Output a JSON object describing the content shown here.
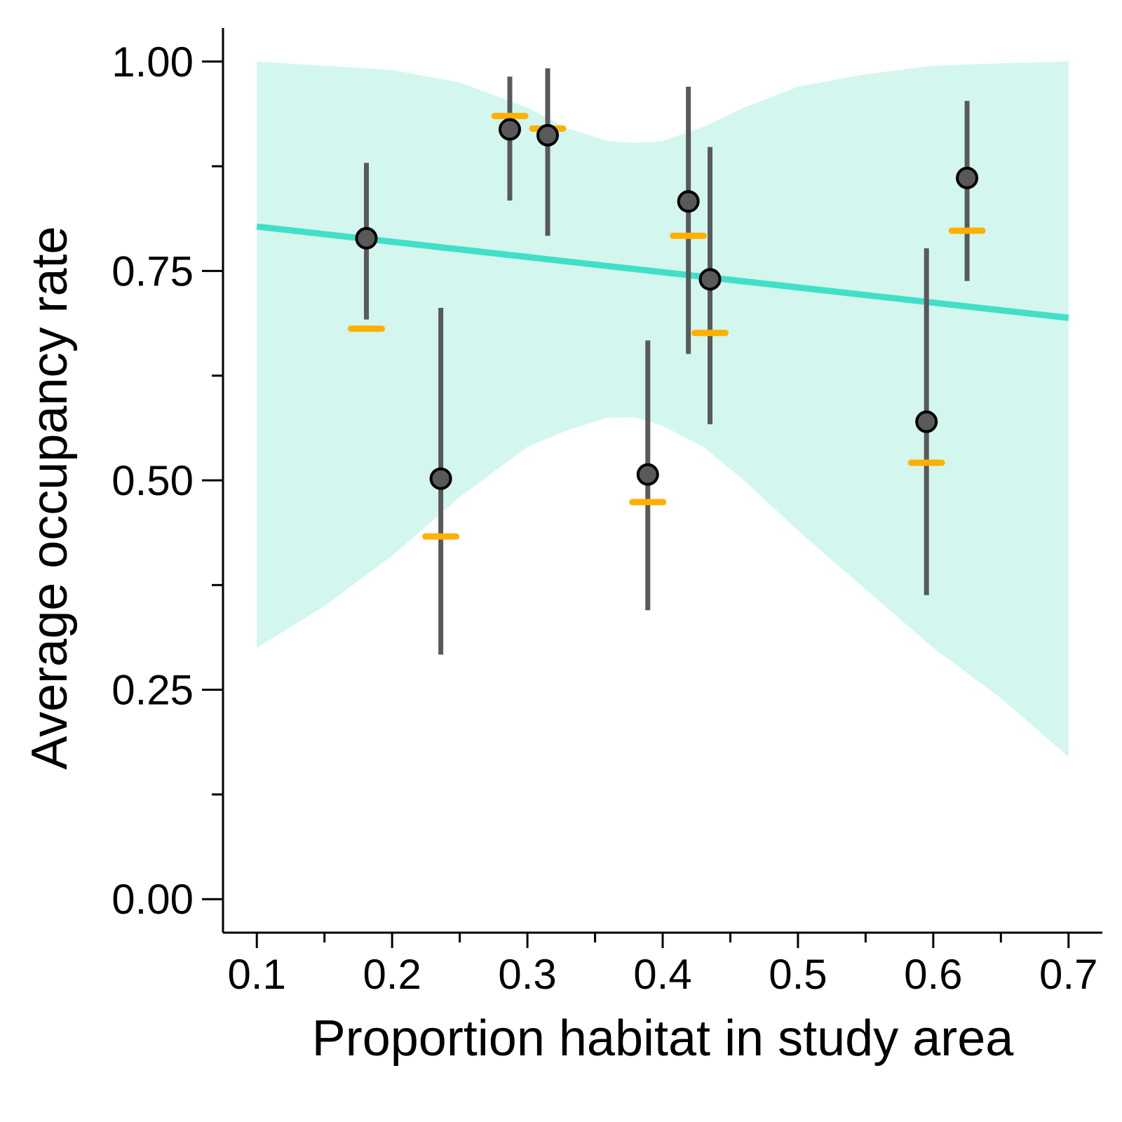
{
  "chart_data": {
    "type": "scatter",
    "xlabel": "Proportion habitat in study area",
    "ylabel": "Average occupancy rate",
    "xlim": [
      0.075,
      0.725
    ],
    "ylim": [
      -0.04,
      1.04
    ],
    "x_ticks": [
      0.1,
      0.2,
      0.3,
      0.4,
      0.5,
      0.6,
      0.7
    ],
    "x_tick_labels": [
      "0.1",
      "0.2",
      "0.3",
      "0.4",
      "0.5",
      "0.6",
      "0.7"
    ],
    "x_minor_ticks": [
      0.15,
      0.25,
      0.35,
      0.45,
      0.55,
      0.65
    ],
    "y_ticks": [
      0.0,
      0.25,
      0.5,
      0.75,
      1.0
    ],
    "y_tick_labels": [
      "0.00",
      "0.25",
      "0.50",
      "0.75",
      "1.00"
    ],
    "y_minor_ticks": [
      0.125,
      0.375,
      0.625,
      0.875
    ],
    "grid": false,
    "colors": {
      "trend": "#40E0C8",
      "ribbon": "#D3F7EF",
      "point": "#595959",
      "errorbar": "#595959",
      "observed": "#FFB000"
    },
    "trend_line": {
      "x": [
        0.1,
        0.7
      ],
      "y": [
        0.803,
        0.694
      ]
    },
    "confidence_band": {
      "x": [
        0.1,
        0.15,
        0.2,
        0.25,
        0.3,
        0.33,
        0.36,
        0.38,
        0.4,
        0.43,
        0.46,
        0.5,
        0.55,
        0.6,
        0.65,
        0.7
      ],
      "lower": [
        0.3,
        0.35,
        0.41,
        0.48,
        0.54,
        0.56,
        0.575,
        0.575,
        0.565,
        0.54,
        0.5,
        0.44,
        0.37,
        0.3,
        0.24,
        0.17
      ],
      "upper": [
        1.0,
        0.995,
        0.99,
        0.975,
        0.945,
        0.92,
        0.905,
        0.903,
        0.905,
        0.922,
        0.945,
        0.97,
        0.985,
        0.995,
        0.998,
        1.0
      ]
    },
    "points": [
      {
        "x": 0.181,
        "y": 0.789,
        "lower": 0.692,
        "upper": 0.879,
        "observed": 0.681
      },
      {
        "x": 0.236,
        "y": 0.502,
        "lower": 0.292,
        "upper": 0.706,
        "observed": 0.433
      },
      {
        "x": 0.287,
        "y": 0.919,
        "lower": 0.834,
        "upper": 0.982,
        "observed": 0.935
      },
      {
        "x": 0.315,
        "y": 0.912,
        "lower": 0.792,
        "upper": 0.992,
        "observed": 0.92
      },
      {
        "x": 0.389,
        "y": 0.507,
        "lower": 0.345,
        "upper": 0.667,
        "observed": 0.474
      },
      {
        "x": 0.419,
        "y": 0.833,
        "lower": 0.651,
        "upper": 0.97,
        "observed": 0.792
      },
      {
        "x": 0.435,
        "y": 0.74,
        "lower": 0.567,
        "upper": 0.898,
        "observed": 0.676
      },
      {
        "x": 0.595,
        "y": 0.57,
        "lower": 0.363,
        "upper": 0.777,
        "observed": 0.521
      },
      {
        "x": 0.625,
        "y": 0.861,
        "lower": 0.738,
        "upper": 0.953,
        "observed": 0.798
      }
    ]
  }
}
